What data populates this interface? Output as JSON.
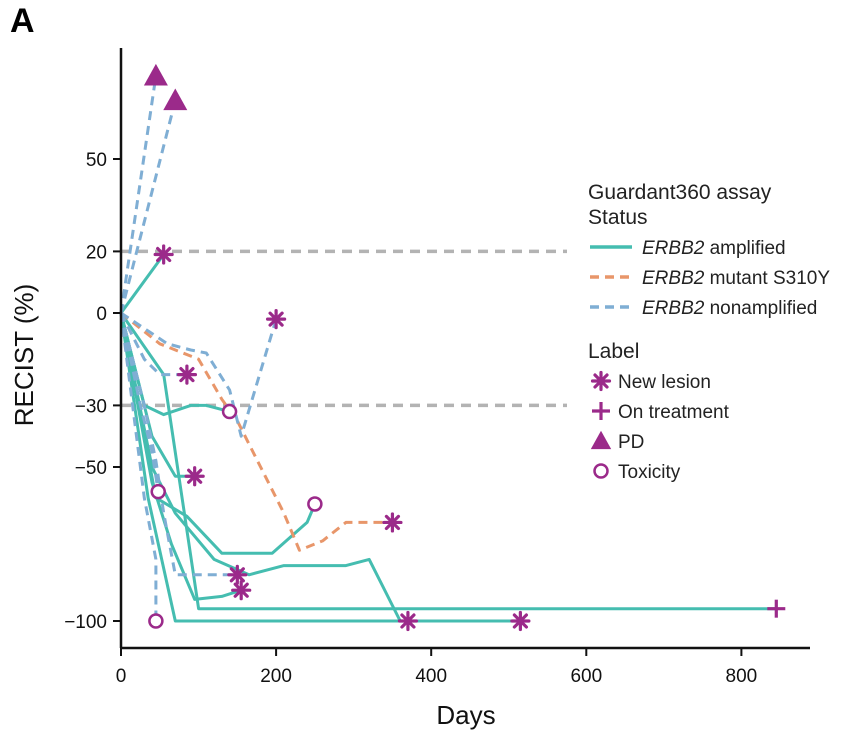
{
  "panel_label": "A",
  "chart_data": {
    "type": "line",
    "xlabel": "Days",
    "ylabel": "RECIST (%)",
    "xlim": [
      0,
      890
    ],
    "ylim": [
      -110,
      75
    ],
    "x_ticks": [
      0,
      200,
      400,
      600,
      800
    ],
    "y_ticks": [
      50,
      20,
      0,
      -30,
      -50,
      -100
    ],
    "reference_lines": [
      20,
      -30
    ],
    "legend": {
      "status_title_line1": "Guardant360 assay",
      "status_title_line2": "Status",
      "status_items": [
        {
          "gene": "ERBB2",
          "text": " amplified",
          "color": "#45bdb0",
          "dash": "solid"
        },
        {
          "gene": "ERBB2",
          "text": " mutant S310Y",
          "color": "#e8966a",
          "dash": "dashed"
        },
        {
          "gene": "ERBB2",
          "text": " nonamplified",
          "color": "#7faed4",
          "dash": "dashed"
        }
      ],
      "label_title": "Label",
      "label_items": [
        {
          "text": "New lesion",
          "marker": "asterisk"
        },
        {
          "text": "On treatment",
          "marker": "plus"
        },
        {
          "text": "PD",
          "marker": "triangle"
        },
        {
          "text": "Toxicity",
          "marker": "circle"
        }
      ]
    },
    "marker_color": "#9b2a8a",
    "series": [
      {
        "status": "amplified",
        "points": [
          [
            0,
            0
          ],
          [
            55,
            19
          ]
        ],
        "end": "asterisk"
      },
      {
        "status": "amplified",
        "points": [
          [
            0,
            0
          ],
          [
            30,
            -30
          ],
          [
            55,
            -33
          ],
          [
            90,
            -30
          ],
          [
            110,
            -30
          ],
          [
            140,
            -32
          ]
        ],
        "end": "circle"
      },
      {
        "status": "amplified",
        "points": [
          [
            0,
            0
          ],
          [
            40,
            -40
          ],
          [
            70,
            -53
          ],
          [
            95,
            -53
          ]
        ],
        "end": "asterisk"
      },
      {
        "status": "amplified",
        "points": [
          [
            0,
            0
          ],
          [
            45,
            -60
          ],
          [
            85,
            -66
          ],
          [
            130,
            -78
          ],
          [
            165,
            -78
          ],
          [
            195,
            -78
          ],
          [
            240,
            -68
          ],
          [
            250,
            -62
          ]
        ],
        "end": "circle"
      },
      {
        "status": "amplified",
        "points": [
          [
            0,
            0
          ],
          [
            40,
            -50
          ],
          [
            70,
            -65
          ],
          [
            120,
            -80
          ],
          [
            165,
            -85
          ],
          [
            210,
            -82
          ],
          [
            290,
            -82
          ],
          [
            320,
            -80
          ],
          [
            360,
            -100
          ],
          [
            370,
            -100
          ]
        ],
        "end": "asterisk"
      },
      {
        "status": "amplified",
        "points": [
          [
            0,
            0
          ],
          [
            40,
            -55
          ],
          [
            65,
            -75
          ],
          [
            95,
            -93
          ],
          [
            130,
            -92
          ],
          [
            155,
            -90
          ]
        ],
        "end": "asterisk"
      },
      {
        "status": "amplified",
        "points": [
          [
            0,
            0
          ],
          [
            35,
            -60
          ],
          [
            70,
            -100
          ],
          [
            200,
            -100
          ],
          [
            370,
            -100
          ],
          [
            515,
            -100
          ]
        ],
        "end": "asterisk"
      },
      {
        "status": "amplified",
        "points": [
          [
            0,
            0
          ],
          [
            55,
            -20
          ],
          [
            100,
            -96
          ],
          [
            400,
            -96
          ],
          [
            845,
            -96
          ]
        ],
        "end": "plus"
      },
      {
        "status": "mutant S310Y",
        "points": [
          [
            0,
            0
          ],
          [
            50,
            -10
          ],
          [
            100,
            -15
          ],
          [
            130,
            -28
          ],
          [
            150,
            -35
          ],
          [
            180,
            -50
          ],
          [
            210,
            -65
          ],
          [
            230,
            -77
          ],
          [
            260,
            -74
          ],
          [
            290,
            -68
          ],
          [
            350,
            -68
          ]
        ],
        "end": "asterisk"
      },
      {
        "status": "nonamplified",
        "points": [
          [
            0,
            0
          ],
          [
            45,
            77
          ]
        ],
        "end": "triangle"
      },
      {
        "status": "nonamplified",
        "points": [
          [
            0,
            0
          ],
          [
            70,
            69
          ]
        ],
        "end": "triangle"
      },
      {
        "status": "nonamplified",
        "points": [
          [
            0,
            0
          ],
          [
            60,
            -10
          ],
          [
            90,
            -12
          ],
          [
            110,
            -13
          ],
          [
            140,
            -25
          ],
          [
            155,
            -40
          ],
          [
            200,
            -2
          ]
        ],
        "end": "asterisk"
      },
      {
        "status": "nonamplified",
        "points": [
          [
            0,
            0
          ],
          [
            30,
            -15
          ],
          [
            50,
            -20
          ],
          [
            85,
            -20
          ]
        ],
        "end": "asterisk"
      },
      {
        "status": "nonamplified",
        "points": [
          [
            0,
            0
          ],
          [
            25,
            -30
          ],
          [
            40,
            -45
          ],
          [
            48,
            -58
          ]
        ],
        "end": "circle"
      },
      {
        "status": "nonamplified",
        "points": [
          [
            0,
            0
          ],
          [
            30,
            -30
          ],
          [
            45,
            -48
          ],
          [
            55,
            -65
          ],
          [
            70,
            -85
          ],
          [
            130,
            -85
          ],
          [
            150,
            -85
          ]
        ],
        "end": "asterisk"
      },
      {
        "status": "nonamplified",
        "points": [
          [
            0,
            0
          ],
          [
            15,
            -30
          ],
          [
            30,
            -60
          ],
          [
            45,
            -80
          ],
          [
            45,
            -100
          ]
        ],
        "end": "circle"
      }
    ]
  }
}
